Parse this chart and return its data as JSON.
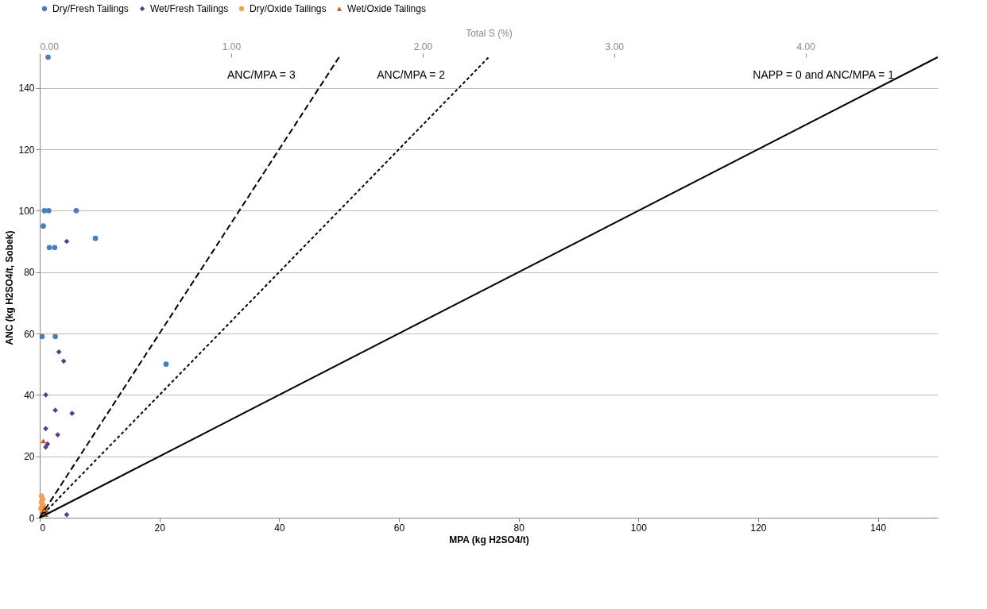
{
  "chart_data": {
    "type": "scatter",
    "xlabel": "MPA (kg H2SO4/t)",
    "ylabel": "ANC  (kg H2SO4/t, Sobek)",
    "x2label": "Total S (%)",
    "xlim": [
      0,
      150
    ],
    "xticks": [
      0,
      20,
      40,
      60,
      80,
      100,
      120,
      140
    ],
    "ylim": [
      0,
      150
    ],
    "yticks": [
      0,
      20,
      40,
      60,
      80,
      100,
      120,
      140
    ],
    "x2lim": [
      0,
      4.69
    ],
    "x2ticks": [
      {
        "value": 0,
        "label": "0.00"
      },
      {
        "value": 1,
        "label": "1.00"
      },
      {
        "value": 2,
        "label": "2.00"
      },
      {
        "value": 3,
        "label": "3.00"
      },
      {
        "value": 4,
        "label": "4.00"
      }
    ],
    "grid": "y",
    "legend": "top",
    "series": [
      {
        "name": "Dry/Fresh Tailings",
        "color": "#4a7ebb",
        "marker": "circle",
        "x": [
          1.4,
          0.8,
          1.5,
          6.1,
          0.6,
          1.6,
          2.5,
          9.3,
          0.4,
          2.6,
          21.1
        ],
        "values": [
          150,
          100,
          100,
          100,
          95,
          88,
          88,
          91,
          59,
          59,
          50
        ]
      },
      {
        "name": "Wet/Fresh Tailings",
        "color": "#5b3a8a",
        "marker": "diamond",
        "x": [
          4.5,
          3.2,
          4.0,
          1.0,
          2.6,
          5.4,
          1.0,
          3.0,
          1.3,
          1.0,
          4.5
        ],
        "values": [
          90,
          54,
          51,
          40,
          35,
          34,
          29,
          27,
          24,
          23,
          1
        ]
      },
      {
        "name": "Dry/Oxide Tailings",
        "color": "#f0a050",
        "marker": "circle",
        "x": [
          0.3,
          0.5,
          0.3,
          0.6,
          0.2
        ],
        "values": [
          7,
          6,
          5,
          4,
          3
        ]
      },
      {
        "name": "Wet/Oxide Tailings",
        "color": "#c0561a",
        "marker": "triangle",
        "x": [
          0.6,
          0.8,
          0.5,
          1.0,
          1.2
        ],
        "values": [
          25,
          3,
          2,
          1,
          2
        ]
      },
      {
        "type": "line",
        "name": "ANC/MPA = 3",
        "color": "#000000",
        "line_style": "dashed",
        "x": [
          0,
          50
        ],
        "values": [
          0,
          150
        ]
      },
      {
        "type": "line",
        "name": "ANC/MPA = 2",
        "color": "#000000",
        "line_style": "dotted",
        "x": [
          0,
          75
        ],
        "values": [
          0,
          150
        ]
      },
      {
        "type": "line",
        "name": "NAPP = 0 and ANC/MPA = 1",
        "color": "#000000",
        "line_style": "solid",
        "x": [
          0,
          150
        ],
        "values": [
          0,
          150
        ]
      }
    ]
  }
}
